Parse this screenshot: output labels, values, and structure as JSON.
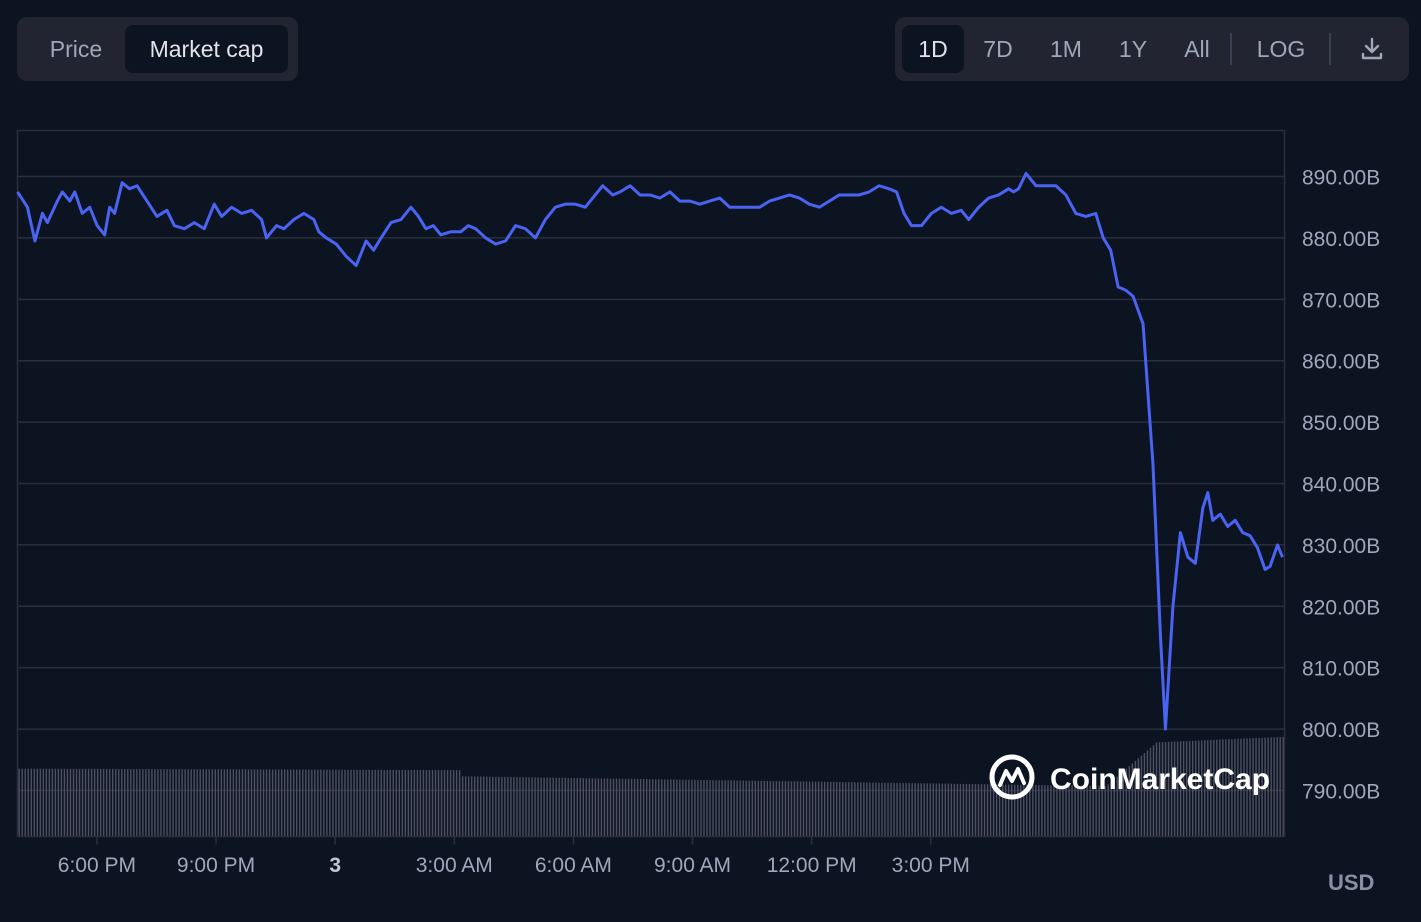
{
  "toggle": {
    "price_label": "Price",
    "market_cap_label": "Market cap"
  },
  "ranges": {
    "d1": "1D",
    "d7": "7D",
    "m1": "1M",
    "y1": "1Y",
    "all": "All",
    "log": "LOG"
  },
  "download_icon": "download-icon",
  "watermark": "CoinMarketCap",
  "currency": "USD",
  "colors": {
    "line": "#4a63f2",
    "volume": "#4c5062",
    "background": "#0d1421",
    "grid": "#2b2f3d"
  },
  "chart_data": {
    "type": "line",
    "ylabel": "",
    "xlabel": "",
    "ylim": [
      782.5,
      897.5
    ],
    "y_ticks": [
      "890.00B",
      "880.00B",
      "870.00B",
      "860.00B",
      "850.00B",
      "840.00B",
      "830.00B",
      "820.00B",
      "810.00B",
      "800.00B",
      "790.00B"
    ],
    "x_ticks": [
      "6:00 PM",
      "9:00 PM",
      "3",
      "3:00 AM",
      "6:00 AM",
      "9:00 AM",
      "12:00 PM",
      "3:00 PM"
    ],
    "x_range_hours": [
      16.0,
      40.0
    ],
    "series": [
      {
        "points": [
          [
            16.0,
            887.5
          ],
          [
            16.2,
            885
          ],
          [
            16.35,
            879.5
          ],
          [
            16.5,
            884
          ],
          [
            16.6,
            882.5
          ],
          [
            16.8,
            886
          ],
          [
            16.9,
            887.5
          ],
          [
            17.05,
            886
          ],
          [
            17.15,
            887.5
          ],
          [
            17.3,
            884
          ],
          [
            17.45,
            885
          ],
          [
            17.6,
            882
          ],
          [
            17.75,
            880.5
          ],
          [
            17.85,
            885
          ],
          [
            17.95,
            884
          ],
          [
            18.1,
            889
          ],
          [
            18.25,
            888
          ],
          [
            18.4,
            888.5
          ],
          [
            18.6,
            886
          ],
          [
            18.8,
            883.5
          ],
          [
            19.0,
            884.5
          ],
          [
            19.15,
            882
          ],
          [
            19.35,
            881.5
          ],
          [
            19.55,
            882.5
          ],
          [
            19.75,
            881.5
          ],
          [
            19.95,
            885.5
          ],
          [
            20.1,
            883.5
          ],
          [
            20.3,
            885
          ],
          [
            20.5,
            884
          ],
          [
            20.7,
            884.5
          ],
          [
            20.9,
            883
          ],
          [
            21.0,
            880
          ],
          [
            21.2,
            882
          ],
          [
            21.35,
            881.5
          ],
          [
            21.55,
            883
          ],
          [
            21.75,
            884
          ],
          [
            21.95,
            883
          ],
          [
            22.05,
            881
          ],
          [
            22.2,
            880
          ],
          [
            22.4,
            879
          ],
          [
            22.6,
            877
          ],
          [
            22.8,
            875.5
          ],
          [
            23.0,
            879.5
          ],
          [
            23.15,
            878
          ],
          [
            23.3,
            880
          ],
          [
            23.5,
            882.5
          ],
          [
            23.7,
            883
          ],
          [
            23.9,
            885
          ],
          [
            24.05,
            883.5
          ],
          [
            24.2,
            881.5
          ],
          [
            24.35,
            882
          ],
          [
            24.5,
            880.5
          ],
          [
            24.7,
            881
          ],
          [
            24.9,
            881
          ],
          [
            25.05,
            882
          ],
          [
            25.2,
            881.5
          ],
          [
            25.4,
            880
          ],
          [
            25.6,
            879
          ],
          [
            25.8,
            879.5
          ],
          [
            26.0,
            882
          ],
          [
            26.2,
            881.5
          ],
          [
            26.4,
            880
          ],
          [
            26.6,
            883
          ],
          [
            26.8,
            885
          ],
          [
            27.0,
            885.5
          ],
          [
            27.2,
            885.5
          ],
          [
            27.4,
            885
          ],
          [
            27.6,
            887
          ],
          [
            27.75,
            888.5
          ],
          [
            27.95,
            887
          ],
          [
            28.1,
            887.5
          ],
          [
            28.3,
            888.5
          ],
          [
            28.5,
            887
          ],
          [
            28.7,
            887
          ],
          [
            28.9,
            886.5
          ],
          [
            29.1,
            887.5
          ],
          [
            29.3,
            886
          ],
          [
            29.5,
            886
          ],
          [
            29.7,
            885.5
          ],
          [
            29.9,
            886
          ],
          [
            30.1,
            886.5
          ],
          [
            30.3,
            885
          ],
          [
            30.5,
            885
          ],
          [
            30.7,
            885
          ],
          [
            30.9,
            885
          ],
          [
            31.1,
            886
          ],
          [
            31.3,
            886.5
          ],
          [
            31.5,
            887
          ],
          [
            31.7,
            886.5
          ],
          [
            31.9,
            885.5
          ],
          [
            32.1,
            885
          ],
          [
            32.3,
            886
          ],
          [
            32.5,
            887
          ],
          [
            32.7,
            887
          ],
          [
            32.9,
            887
          ],
          [
            33.1,
            887.5
          ],
          [
            33.3,
            888.5
          ],
          [
            33.5,
            888
          ],
          [
            33.65,
            887.5
          ],
          [
            33.8,
            884
          ],
          [
            33.95,
            882
          ],
          [
            34.15,
            882
          ],
          [
            34.35,
            884
          ],
          [
            34.55,
            885
          ],
          [
            34.75,
            884
          ],
          [
            34.95,
            884.5
          ],
          [
            35.1,
            883
          ],
          [
            35.3,
            885
          ],
          [
            35.5,
            886.5
          ],
          [
            35.7,
            887
          ],
          [
            35.9,
            888
          ],
          [
            36.0,
            887.5
          ],
          [
            36.1,
            888
          ],
          [
            36.25,
            890.5
          ],
          [
            36.45,
            888.5
          ],
          [
            36.65,
            888.5
          ],
          [
            36.85,
            888.5
          ],
          [
            37.05,
            887
          ],
          [
            37.25,
            884
          ],
          [
            37.45,
            883.5
          ],
          [
            37.65,
            884
          ],
          [
            37.8,
            880
          ],
          [
            37.95,
            878
          ],
          [
            38.1,
            872
          ],
          [
            38.25,
            871.5
          ],
          [
            38.4,
            870.5
          ],
          [
            38.6,
            866
          ],
          [
            38.8,
            843
          ],
          [
            38.95,
            815
          ],
          [
            39.05,
            800
          ],
          [
            39.2,
            820
          ],
          [
            39.35,
            832
          ],
          [
            39.5,
            828
          ],
          [
            39.65,
            827
          ],
          [
            39.8,
            836
          ],
          [
            39.9,
            838.5
          ],
          [
            40.0,
            834
          ],
          [
            40.15,
            835
          ],
          [
            40.3,
            833
          ],
          [
            40.45,
            834
          ],
          [
            40.6,
            832
          ],
          [
            40.75,
            831.5
          ],
          [
            40.9,
            829.5
          ],
          [
            41.05,
            826
          ],
          [
            41.15,
            826.5
          ],
          [
            41.3,
            830
          ],
          [
            41.4,
            828
          ]
        ],
        "volume_level": [
          0.62,
          0.55,
          0.46,
          0.86
        ]
      }
    ]
  }
}
